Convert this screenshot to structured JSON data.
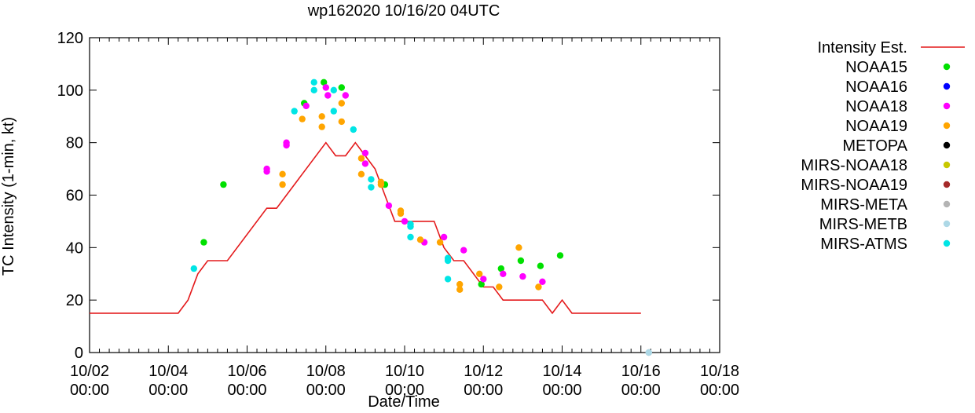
{
  "chart_data": {
    "type": "scatter",
    "title": "wp162020 10/16/20 04UTC",
    "xlabel": "Date/Time",
    "ylabel": "TC Intensity (1-min, kt)",
    "ylim": [
      0,
      120
    ],
    "yticks": [
      0,
      20,
      40,
      60,
      80,
      100,
      120
    ],
    "xlim": [
      0,
      16
    ],
    "xticks": [
      {
        "value": 0,
        "date": "10/02",
        "time": "00:00"
      },
      {
        "value": 2,
        "date": "10/04",
        "time": "00:00"
      },
      {
        "value": 4,
        "date": "10/06",
        "time": "00:00"
      },
      {
        "value": 6,
        "date": "10/08",
        "time": "00:00"
      },
      {
        "value": 8,
        "date": "10/10",
        "time": "00:00"
      },
      {
        "value": 10,
        "date": "10/12",
        "time": "00:00"
      },
      {
        "value": 12,
        "date": "10/14",
        "time": "00:00"
      },
      {
        "value": 14,
        "date": "10/16",
        "time": "00:00"
      },
      {
        "value": 16,
        "date": "10/18",
        "time": "00:00"
      }
    ],
    "grid": false,
    "legend_position": "right",
    "line": {
      "name": "Intensity Est.",
      "color": "#e41a1c",
      "points": [
        [
          0,
          15
        ],
        [
          2.25,
          15
        ],
        [
          2.5,
          20
        ],
        [
          2.75,
          30
        ],
        [
          3,
          35
        ],
        [
          3.5,
          35
        ],
        [
          4.5,
          55
        ],
        [
          4.75,
          55
        ],
        [
          6,
          80
        ],
        [
          6.25,
          75
        ],
        [
          6.5,
          75
        ],
        [
          6.75,
          80
        ],
        [
          7.0,
          75
        ],
        [
          7.25,
          70
        ],
        [
          7.5,
          60
        ],
        [
          7.75,
          50
        ],
        [
          8,
          50
        ],
        [
          8.75,
          50
        ],
        [
          9,
          40
        ],
        [
          9.25,
          35
        ],
        [
          9.5,
          35
        ],
        [
          10,
          25
        ],
        [
          10.25,
          25
        ],
        [
          10.5,
          20
        ],
        [
          11.5,
          20
        ],
        [
          11.75,
          15
        ],
        [
          12,
          20
        ],
        [
          12.25,
          15
        ],
        [
          14,
          15
        ]
      ]
    },
    "series": [
      {
        "name": "NOAA15",
        "color": "#00e000",
        "points": [
          [
            2.9,
            42
          ],
          [
            3.4,
            64
          ],
          [
            5.45,
            95
          ],
          [
            5.95,
            103
          ],
          [
            6.4,
            101
          ],
          [
            7.5,
            64
          ],
          [
            9.95,
            26
          ],
          [
            10.45,
            32
          ],
          [
            10.95,
            35
          ],
          [
            11.45,
            33
          ],
          [
            11.95,
            37
          ]
        ]
      },
      {
        "name": "NOAA16",
        "color": "#0000ff",
        "points": []
      },
      {
        "name": "NOAA18",
        "color": "#ff00ff",
        "points": [
          [
            4.5,
            70
          ],
          [
            4.5,
            69
          ],
          [
            5.0,
            80
          ],
          [
            5.0,
            79
          ],
          [
            5.5,
            94
          ],
          [
            6.0,
            101
          ],
          [
            6.05,
            98
          ],
          [
            6.5,
            98
          ],
          [
            7.0,
            76
          ],
          [
            7.0,
            72
          ],
          [
            7.6,
            56
          ],
          [
            8.0,
            50
          ],
          [
            8.5,
            42
          ],
          [
            9.0,
            44
          ],
          [
            9.5,
            39
          ],
          [
            10.0,
            28
          ],
          [
            10.5,
            30
          ],
          [
            11.0,
            29
          ],
          [
            11.5,
            27
          ]
        ]
      },
      {
        "name": "NOAA19",
        "color": "#ffa500",
        "points": [
          [
            4.9,
            68
          ],
          [
            4.9,
            64
          ],
          [
            5.4,
            89
          ],
          [
            5.9,
            90
          ],
          [
            5.9,
            86
          ],
          [
            6.4,
            95
          ],
          [
            6.4,
            88
          ],
          [
            6.9,
            74
          ],
          [
            6.9,
            68
          ],
          [
            7.4,
            65
          ],
          [
            7.4,
            64
          ],
          [
            7.9,
            54
          ],
          [
            7.9,
            53
          ],
          [
            8.4,
            43
          ],
          [
            8.9,
            42
          ],
          [
            9.4,
            26
          ],
          [
            9.4,
            24
          ],
          [
            9.9,
            30
          ],
          [
            10.4,
            25
          ],
          [
            10.9,
            40
          ],
          [
            11.4,
            25
          ]
        ]
      },
      {
        "name": "METOPA",
        "color": "#000000",
        "points": []
      },
      {
        "name": "MIRS-NOAA18",
        "color": "#c8c800",
        "points": []
      },
      {
        "name": "MIRS-NOAA19",
        "color": "#a52a2a",
        "points": []
      },
      {
        "name": "MIRS-META",
        "color": "#b4b4b4",
        "points": [
          [
            14.2,
            0
          ]
        ]
      },
      {
        "name": "MIRS-METB",
        "color": "#add8e6",
        "points": [
          [
            14.2,
            0
          ]
        ]
      },
      {
        "name": "MIRS-ATMS",
        "color": "#00e5e5",
        "points": [
          [
            2.65,
            32
          ],
          [
            5.2,
            92
          ],
          [
            5.7,
            103
          ],
          [
            5.7,
            100
          ],
          [
            6.2,
            100
          ],
          [
            6.2,
            92
          ],
          [
            6.7,
            85
          ],
          [
            7.15,
            66
          ],
          [
            7.15,
            63
          ],
          [
            8.15,
            49
          ],
          [
            8.15,
            48
          ],
          [
            8.15,
            44
          ],
          [
            9.1,
            36
          ],
          [
            9.1,
            35
          ],
          [
            9.1,
            28
          ]
        ]
      }
    ]
  }
}
